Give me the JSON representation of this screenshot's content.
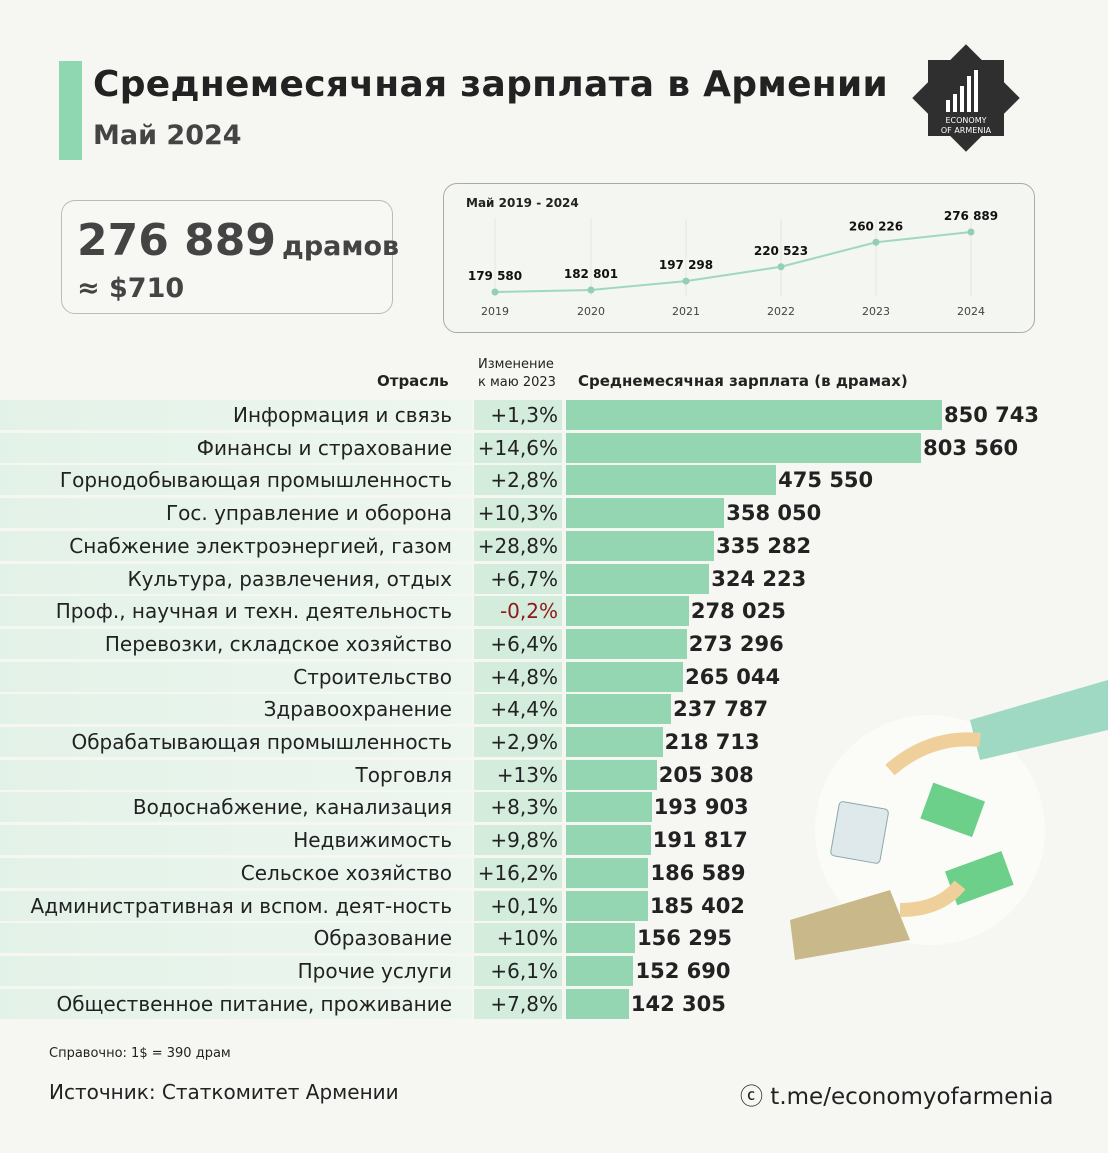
{
  "header": {
    "title": "Среднемесячная зарплата в Армении",
    "subtitle": "Май 2024"
  },
  "logo": {
    "text_top": "ECONOMY",
    "text_bottom": "OF ARMENIA"
  },
  "summary": {
    "value": "276 889",
    "unit": "драмов",
    "usd": "≈ $710"
  },
  "colors": {
    "accent": "#8fd7b1",
    "bar": "#93d6b1",
    "negative": "#8b1a1a"
  },
  "chart_data": [
    {
      "type": "line",
      "title": "Май 2019 - 2024",
      "x": [
        "2019",
        "2020",
        "2021",
        "2022",
        "2023",
        "2024"
      ],
      "values": [
        179580,
        182801,
        197298,
        220523,
        260226,
        276889
      ],
      "labels": [
        "179 580",
        "182 801",
        "197 298",
        "220 523",
        "260 226",
        "276 889"
      ]
    },
    {
      "type": "bar",
      "orientation": "horizontal",
      "title": "Среднемесячная зарплата (в драмах)",
      "col_industry": "Отрасль",
      "col_change_1": "Изменение",
      "col_change_2": "к маю 2023",
      "categories": [
        "Информация и связь",
        "Финансы и страхование",
        "Горнодобывающая промышленность",
        "Гос. управление и оборона",
        "Снабжение электроэнергией, газом",
        "Культура, развлечения, отдых",
        "Проф., научная и техн. деятельность",
        "Перевозки, складское хозяйство",
        "Строительство",
        "Здравоохранение",
        "Обрабатывающая промышленность",
        "Торговля",
        "Водоснабжение, канализация",
        "Недвижимость",
        "Сельское хозяйство",
        "Административная и вспом. деят-ность",
        "Образование",
        "Прочие услуги",
        "Общественное питание, проживание"
      ],
      "change": [
        "+1,3%",
        "+14,6%",
        "+2,8%",
        "+10,3%",
        "+28,8%",
        "+6,7%",
        "-0,2%",
        "+6,4%",
        "+4,8%",
        "+4,4%",
        "+2,9%",
        "+13%",
        "+8,3%",
        "+9,8%",
        "+16,2%",
        "+0,1%",
        "+10%",
        "+6,1%",
        "+7,8%"
      ],
      "values": [
        850743,
        803560,
        475550,
        358050,
        335282,
        324223,
        278025,
        273296,
        265044,
        237787,
        218713,
        205308,
        193903,
        191817,
        186589,
        185402,
        156295,
        152690,
        142305
      ],
      "value_labels": [
        "850 743",
        "803 560",
        "475 550",
        "358 050",
        "335 282",
        "324 223",
        "278 025",
        "273 296",
        "265 044",
        "237 787",
        "218 713",
        "205 308",
        "193 903",
        "191 817",
        "186 589",
        "185 402",
        "156 295",
        "152 690",
        "142 305"
      ]
    }
  ],
  "footer": {
    "note": "Справочно: 1$ = 390 драм",
    "source": "Источник: Статкомитет Армении",
    "credit": "ⓒ t.me/economyofarmenia"
  }
}
